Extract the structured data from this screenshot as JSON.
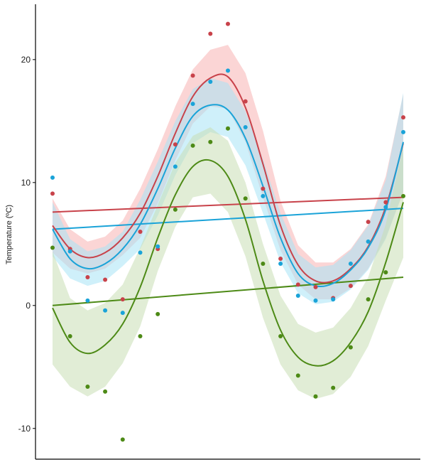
{
  "chart_data": {
    "type": "scatter",
    "title": "",
    "xlabel": "",
    "ylabel": "Temperature (ºC)",
    "x_range": [
      0,
      20
    ],
    "ylim": [
      -12.5,
      24.5
    ],
    "y_ticks": [
      -10,
      0,
      10,
      20
    ],
    "grid": false,
    "legend": "none",
    "series": [
      {
        "color": "#c8424a",
        "band_color": "#f7b3b3",
        "x": [
          0,
          1,
          2,
          3,
          4,
          5,
          6,
          7,
          8,
          9,
          10,
          11,
          12,
          13,
          14,
          15,
          16,
          17,
          18,
          19,
          20
        ],
        "points": [
          9.1,
          4.6,
          2.3,
          2.1,
          0.5,
          6.0,
          4.6,
          13.1,
          18.7,
          22.1,
          22.9,
          16.6,
          9.5,
          3.8,
          1.7,
          1.5,
          0.6,
          1.6,
          6.8,
          8.4,
          15.3
        ],
        "smooth": [
          6.5,
          4.6,
          3.9,
          4.3,
          5.5,
          7.5,
          10.5,
          14.0,
          17.0,
          18.5,
          18.6,
          16.1,
          11.5,
          6.5,
          3.3,
          2.0,
          2.0,
          3.0,
          4.8,
          8.0,
          13.2
        ],
        "band_lower": [
          4.3,
          3.0,
          2.6,
          3.0,
          4.1,
          5.5,
          8.3,
          11.8,
          14.8,
          16.2,
          16.0,
          13.3,
          8.8,
          4.5,
          1.7,
          0.5,
          0.5,
          1.4,
          3.0,
          5.5,
          9.2
        ],
        "band_upper": [
          8.7,
          6.2,
          5.2,
          5.6,
          6.9,
          9.5,
          12.7,
          16.2,
          19.2,
          20.8,
          21.2,
          18.9,
          14.2,
          8.5,
          4.9,
          3.5,
          3.5,
          4.6,
          6.6,
          10.5,
          17.2
        ],
        "trend": [
          7.6,
          8.8
        ]
      },
      {
        "color": "#1aa3d8",
        "band_color": "#a8e3f5",
        "x": [
          0,
          1,
          2,
          3,
          4,
          5,
          6,
          7,
          8,
          9,
          10,
          11,
          12,
          13,
          14,
          15,
          16,
          17,
          18,
          19,
          20
        ],
        "points": [
          10.4,
          4.4,
          0.4,
          -0.4,
          -0.6,
          4.3,
          4.8,
          11.3,
          16.4,
          18.2,
          19.1,
          14.5,
          8.9,
          3.4,
          0.8,
          0.4,
          0.5,
          3.4,
          5.2,
          8.0,
          14.1
        ],
        "smooth": [
          6.2,
          3.8,
          3.0,
          3.4,
          4.6,
          6.6,
          9.5,
          12.8,
          15.4,
          16.3,
          15.9,
          13.6,
          9.7,
          5.5,
          2.6,
          1.6,
          1.8,
          2.9,
          4.7,
          7.8,
          13.3
        ],
        "band_lower": [
          4.0,
          2.2,
          1.6,
          2.0,
          3.2,
          4.6,
          7.3,
          10.6,
          13.2,
          14.1,
          13.7,
          11.4,
          7.5,
          3.5,
          1.0,
          0.1,
          0.3,
          1.3,
          2.9,
          5.4,
          9.3
        ],
        "band_upper": [
          8.4,
          5.4,
          4.4,
          4.8,
          6.0,
          8.6,
          11.7,
          15.0,
          17.6,
          18.5,
          18.1,
          15.8,
          11.9,
          7.5,
          4.2,
          3.1,
          3.3,
          4.5,
          6.5,
          10.2,
          17.3
        ],
        "trend": [
          6.2,
          7.9
        ]
      },
      {
        "color": "#4d8a16",
        "band_color": "#c9dfb4",
        "x": [
          0,
          1,
          2,
          3,
          4,
          5,
          6,
          7,
          8,
          9,
          10,
          11,
          12,
          13,
          14,
          15,
          16,
          17,
          18,
          19,
          20
        ],
        "points": [
          4.7,
          -2.5,
          -6.6,
          -7.0,
          -10.9,
          -2.5,
          -0.7,
          7.8,
          13.0,
          13.3,
          14.4,
          8.7,
          3.4,
          -2.5,
          -5.7,
          -7.4,
          -6.7,
          -3.4,
          0.5,
          2.7,
          8.9
        ],
        "smooth": [
          -0.2,
          -3.0,
          -3.9,
          -3.2,
          -1.5,
          1.5,
          5.5,
          9.0,
          11.3,
          11.8,
          10.5,
          7.0,
          2.0,
          -2.0,
          -4.2,
          -4.9,
          -4.5,
          -3.0,
          -0.5,
          3.5,
          8.4
        ],
        "band_lower": [
          -4.8,
          -6.6,
          -7.4,
          -6.6,
          -4.7,
          -1.7,
          2.8,
          6.4,
          8.8,
          9.1,
          7.6,
          4.0,
          -1.0,
          -4.8,
          -6.9,
          -7.6,
          -7.2,
          -5.8,
          -3.3,
          0.4,
          3.9
        ],
        "band_upper": [
          4.4,
          0.6,
          -0.4,
          0.2,
          1.7,
          4.7,
          8.2,
          11.6,
          13.8,
          14.5,
          13.4,
          10.0,
          5.0,
          0.8,
          -1.5,
          -2.2,
          -1.8,
          -0.2,
          2.3,
          6.6,
          12.9
        ],
        "trend": [
          0.0,
          2.3
        ]
      }
    ]
  }
}
